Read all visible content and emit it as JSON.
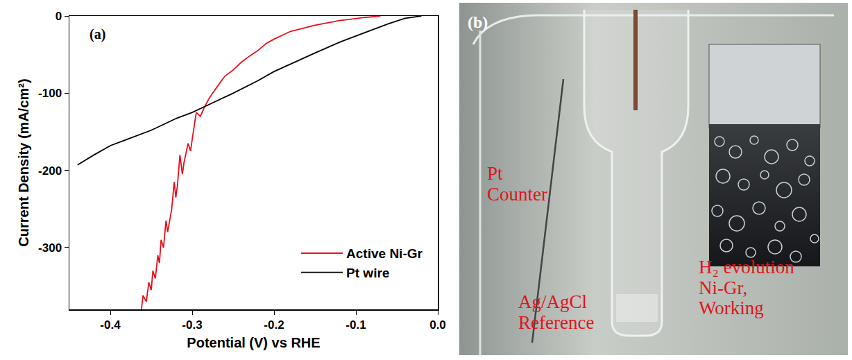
{
  "chart_data": {
    "type": "line",
    "annotations": [
      "(a)"
    ],
    "x_label": "Potential (V) vs RHE",
    "y_label": "Current Density (mA/cm²)",
    "xlim": [
      -0.45,
      0.0
    ],
    "xticks": [
      -0.4,
      -0.3,
      -0.2,
      -0.1,
      {
        "value": 0.0,
        "label": "0.0"
      }
    ],
    "ylim": [
      -380,
      0
    ],
    "yticks": [
      -300,
      -200,
      -100,
      0
    ],
    "legend": "lower right",
    "grid": false,
    "series": [
      {
        "name": "Active Ni-Gr",
        "color": "#e8101a",
        "x": [
          -0.07,
          -0.09,
          -0.12,
          -0.15,
          -0.18,
          -0.2,
          -0.21,
          -0.22,
          -0.23,
          -0.24,
          -0.25,
          -0.26,
          -0.265,
          -0.27,
          -0.275,
          -0.28,
          -0.285,
          -0.29,
          -0.295,
          -0.3,
          -0.302,
          -0.305,
          -0.31,
          -0.312,
          -0.315,
          -0.318,
          -0.32,
          -0.322,
          -0.325,
          -0.33,
          -0.332,
          -0.335,
          -0.338,
          -0.34,
          -0.342,
          -0.345,
          -0.348,
          -0.35,
          -0.353,
          -0.356,
          -0.36,
          -0.362
        ],
        "values": [
          0,
          -2,
          -6,
          -12,
          -20,
          -30,
          -36,
          -45,
          -52,
          -60,
          -70,
          -78,
          -85,
          -92,
          -100,
          -108,
          -118,
          -130,
          -125,
          -160,
          -175,
          -165,
          -190,
          -205,
          -180,
          -220,
          -235,
          -215,
          -250,
          -280,
          -265,
          -300,
          -290,
          -320,
          -310,
          -340,
          -330,
          -355,
          -345,
          -370,
          -362,
          -380
        ]
      },
      {
        "name": "Pt wire",
        "color": "#000000",
        "x": [
          -0.02,
          -0.04,
          -0.06,
          -0.08,
          -0.1,
          -0.12,
          -0.15,
          -0.18,
          -0.2,
          -0.22,
          -0.25,
          -0.28,
          -0.3,
          -0.32,
          -0.35,
          -0.38,
          -0.4,
          -0.42,
          -0.44
        ],
        "values": [
          0,
          -3,
          -10,
          -18,
          -26,
          -34,
          -48,
          -62,
          -72,
          -84,
          -100,
          -115,
          -125,
          -133,
          -148,
          -160,
          -168,
          -180,
          -193
        ]
      }
    ]
  },
  "panel_b": {
    "letter": "(b)",
    "labels": [
      {
        "lines": [
          "Pt",
          "Counter"
        ]
      },
      {
        "lines": [
          "Ag/AgCl",
          "Reference"
        ]
      },
      {
        "lines": [
          "H₂ evolution",
          "Ni-Gr,",
          "Working"
        ]
      }
    ]
  }
}
